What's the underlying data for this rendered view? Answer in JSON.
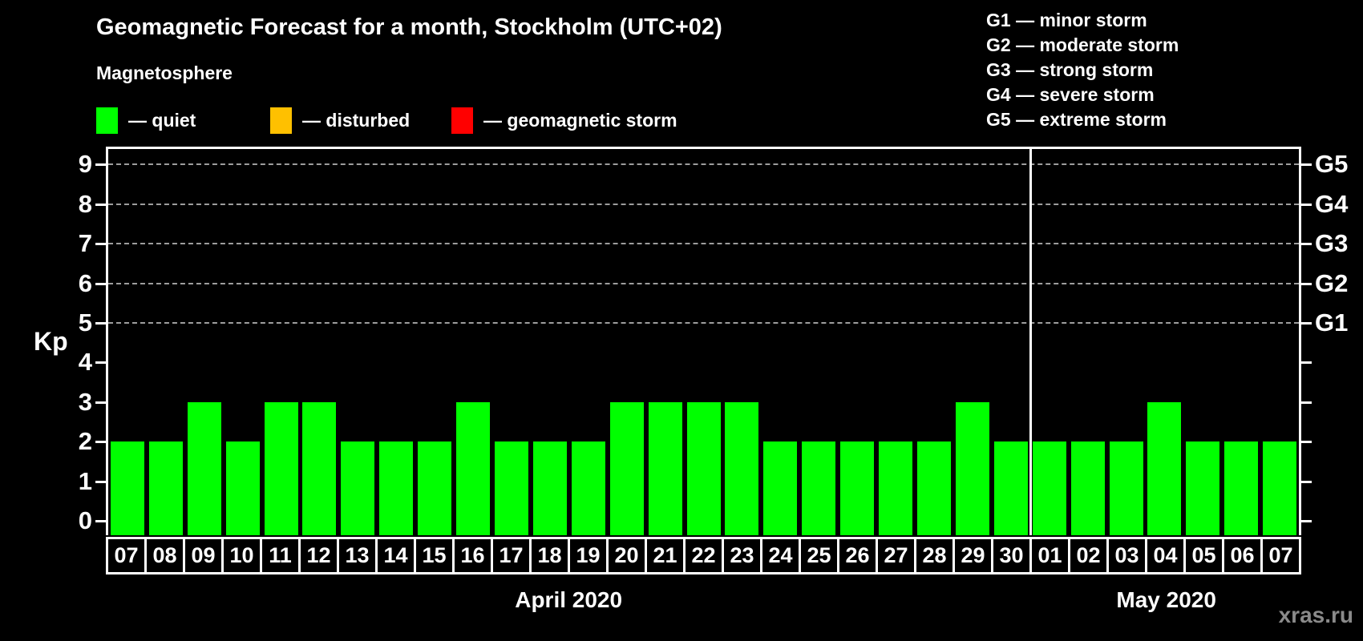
{
  "title": "Geomagnetic Forecast for a month, Stockholm (UTC+02)",
  "subtitle": "Magnetosphere",
  "legend": {
    "items": [
      {
        "name": "quiet",
        "label": "— quiet",
        "color": "#00ff00"
      },
      {
        "name": "disturbed",
        "label": "— disturbed",
        "color": "#ffc000"
      },
      {
        "name": "storm",
        "label": "— geomagnetic storm",
        "color": "#ff0000"
      }
    ]
  },
  "g_scale_legend": [
    "G1 — minor storm",
    "G2 — moderate storm",
    "G3 — strong storm",
    "G4 — severe storm",
    "G5 — extreme storm"
  ],
  "watermark": "xras.ru",
  "chart_data": {
    "type": "bar",
    "title": "Geomagnetic Forecast for a month, Stockholm (UTC+02)",
    "ylabel": "Kp",
    "ylim": [
      0,
      9
    ],
    "yticks": [
      0,
      1,
      2,
      3,
      4,
      5,
      6,
      7,
      8,
      9
    ],
    "gridlines_at": [
      5,
      6,
      7,
      8,
      9
    ],
    "grid": "dashed, only at storm levels G1–G5",
    "right_axis_labels": [
      {
        "value": 5,
        "label": "G1"
      },
      {
        "value": 6,
        "label": "G2"
      },
      {
        "value": 7,
        "label": "G3"
      },
      {
        "value": 8,
        "label": "G4"
      },
      {
        "value": 9,
        "label": "G5"
      }
    ],
    "categories": [
      "07",
      "08",
      "09",
      "10",
      "11",
      "12",
      "13",
      "14",
      "15",
      "16",
      "17",
      "18",
      "19",
      "20",
      "21",
      "22",
      "23",
      "24",
      "25",
      "26",
      "27",
      "28",
      "29",
      "30",
      "01",
      "02",
      "03",
      "04",
      "05",
      "06",
      "07"
    ],
    "month_groups": [
      {
        "label": "April 2020",
        "days": 24
      },
      {
        "label": "May 2020",
        "days": 7
      }
    ],
    "series": [
      {
        "name": "Kp forecast",
        "status": "quiet",
        "values": [
          2,
          2,
          3,
          2,
          3,
          3,
          2,
          2,
          2,
          3,
          2,
          2,
          2,
          3,
          3,
          3,
          3,
          2,
          2,
          2,
          2,
          2,
          3,
          2,
          2,
          2,
          2,
          3,
          2,
          2,
          2
        ]
      }
    ]
  }
}
